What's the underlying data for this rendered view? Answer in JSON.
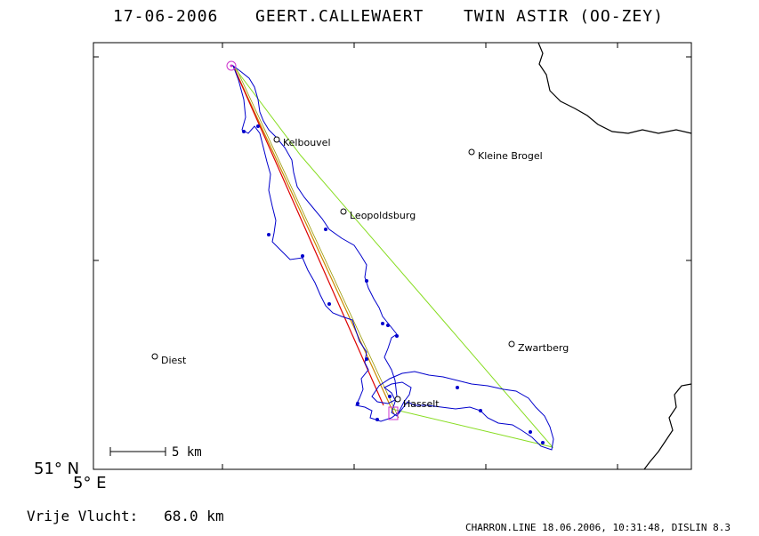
{
  "header": {
    "date": "17-06-2006",
    "pilot": "GEERT.CALLEWAERT",
    "glider": "TWIN ASTIR (OO-ZEY)"
  },
  "map": {
    "towns": [
      {
        "name": "Kelbouvel"
      },
      {
        "name": "Kleine Brogel"
      },
      {
        "name": "Leopoldsburg"
      },
      {
        "name": "Zwartberg"
      },
      {
        "name": "Diest"
      },
      {
        "name": "Hasselt"
      }
    ],
    "scale_label": "5 km",
    "corner_lat": "51° N",
    "corner_lon": "5° E",
    "colors": {
      "track": "#0000cc",
      "task_triangle": "#88dd22",
      "free_line_red": "#dd0000",
      "free_line_orange": "#cc8800",
      "border": "#000000",
      "marker": "#cc33cc"
    }
  },
  "footer": {
    "flight_label": "Vrije Vlucht:",
    "flight_distance": "68.0 km",
    "software": "CHARRON.LINE 18.06.2006, 10:31:48, DISLIN 8.3"
  }
}
